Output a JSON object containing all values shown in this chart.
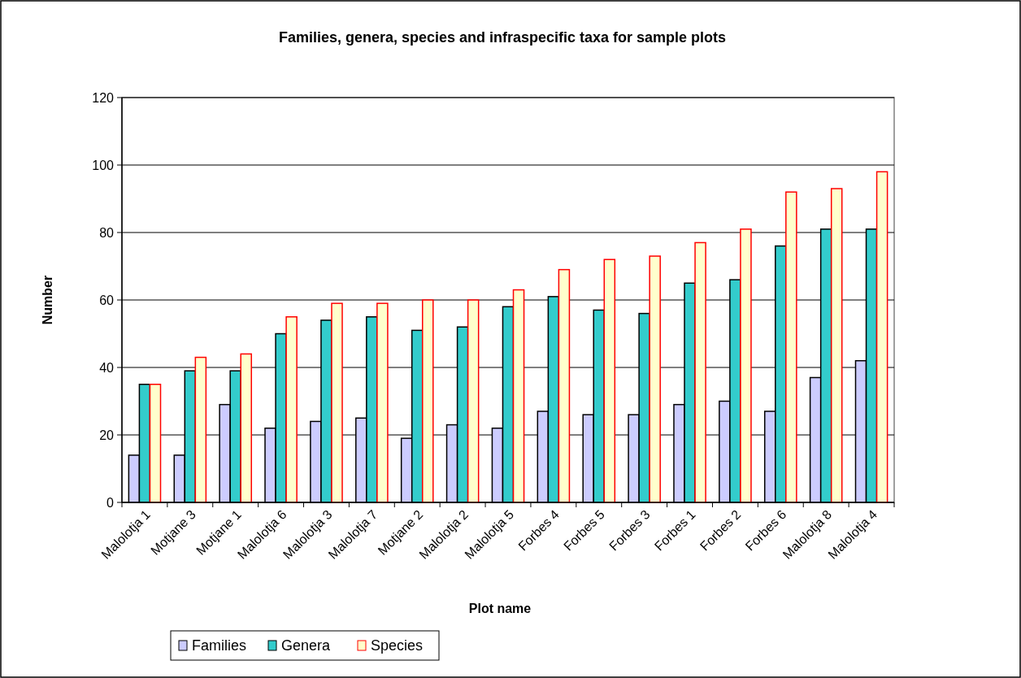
{
  "chart_data": {
    "type": "bar",
    "title": "Families, genera, species and infraspecific taxa for sample plots",
    "xlabel": "Plot name",
    "ylabel": "Number",
    "categories": [
      "Malolotja 1",
      "Motjane 3",
      "Motjane 1",
      "Malolotja 6",
      "Malolotja 3",
      "Malolotja 7",
      "Motjane 2",
      "Malolotja 2",
      "Malolotja 5",
      "Forbes 4",
      "Forbes 5",
      "Forbes 3",
      "Forbes 1",
      "Forbes 2",
      "Forbes 6",
      "Malolotja 8",
      "Malolotja 4"
    ],
    "series": [
      {
        "name": "Families",
        "color": "#ccccff",
        "values": [
          14,
          14,
          29,
          22,
          24,
          25,
          19,
          23,
          22,
          27,
          26,
          26,
          29,
          30,
          27,
          37,
          42
        ]
      },
      {
        "name": "Genera",
        "color": "#33cccc",
        "values": [
          35,
          39,
          39,
          50,
          54,
          55,
          51,
          52,
          58,
          61,
          57,
          56,
          65,
          66,
          76,
          81,
          81
        ]
      },
      {
        "name": "Species",
        "color": "#ffffcc",
        "values": [
          35,
          43,
          44,
          55,
          59,
          59,
          60,
          60,
          63,
          69,
          72,
          73,
          77,
          81,
          92,
          93,
          98
        ]
      }
    ],
    "ylim": [
      0,
      120
    ],
    "yticks": [
      0,
      20,
      40,
      60,
      80,
      100,
      120
    ],
    "grid": "y",
    "legend": "bottom"
  }
}
